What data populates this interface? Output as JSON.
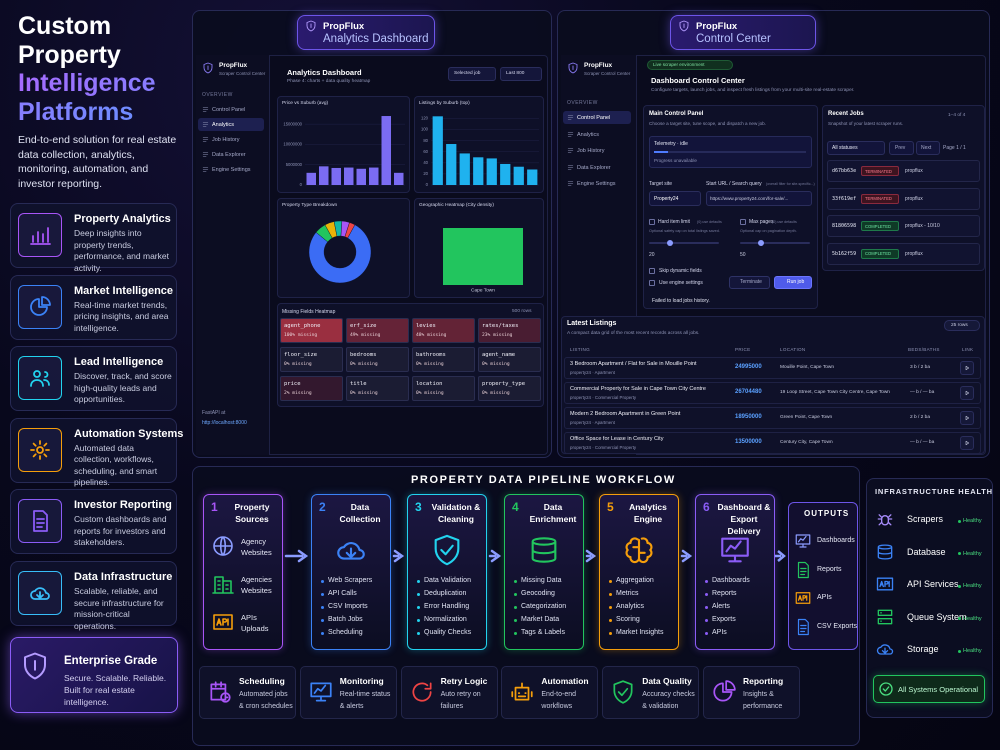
{
  "left": {
    "title": "Custom Property",
    "title_accent": "Intelligence Platforms",
    "description": "End-to-end solution for real estate data collection, analytics, monitoring, automation, and investor reporting.",
    "features": [
      {
        "title": "Property Analytics",
        "text": "Deep insights into property trends, performance, and market activity."
      },
      {
        "title": "Market Intelligence",
        "text": "Real-time market trends, pricing insights, and area intelligence."
      },
      {
        "title": "Lead Intelligence",
        "text": "Discover, track, and score high-quality leads and opportunities."
      },
      {
        "title": "Automation Systems",
        "text": "Automated data collection, workflows, scheduling, and smart pipelines."
      },
      {
        "title": "Investor Reporting",
        "text": "Custom dashboards and reports for investors and stakeholders."
      },
      {
        "title": "Data Infrastructure",
        "text": "Scalable, reliable, and secure infrastructure for mission-critical operations."
      }
    ],
    "enterprise": {
      "title": "Enterprise Grade",
      "text": "Secure. Scalable. Reliable. Built for real estate intelligence."
    }
  },
  "analytics": {
    "header": {
      "brand": "PropFlux",
      "title": "Analytics Dashboard"
    },
    "app": {
      "brand": "PropFlux",
      "tagline": "Scraper Control Center",
      "section": "OVERVIEW",
      "nav": [
        "Control Panel",
        "Analytics",
        "Job History",
        "Data Explorer",
        "Engine Settings"
      ],
      "footer": "FastAPI at",
      "link": "http://localhost:8000"
    },
    "main": {
      "title": "Analytics Dashboard",
      "subtitle": "Phase 4: charts + data quality heatmap",
      "controls": [
        "Selected job",
        "Last 800"
      ]
    },
    "charts": [
      {
        "type": "bar",
        "title": "Price vs Suburb (avg)",
        "color": "#7b6cf2",
        "values": [
          3000000,
          4600000,
          4200000,
          4300000,
          4000000,
          4300000,
          17000000,
          3000000
        ],
        "ylim": [
          0,
          17500000
        ],
        "yticks": [
          0,
          5000000,
          10000000,
          15000000
        ]
      },
      {
        "type": "bar",
        "title": "Listings by Suburb (top)",
        "color": "#1fb2ef",
        "values": [
          124,
          74,
          57,
          50,
          48,
          38,
          33,
          28
        ],
        "ylim": [
          0,
          130
        ],
        "yticks": [
          0,
          20,
          40,
          60,
          80,
          100,
          120
        ]
      },
      {
        "type": "pie",
        "title": "Property Type Breakdown",
        "values": [
          78,
          6,
          5,
          4,
          4,
          3
        ],
        "colors": [
          "#3b6cf5",
          "#22c55e",
          "#eab308",
          "#14b8a6",
          "#a855f7",
          "#ef4444"
        ]
      },
      {
        "type": "heatmap",
        "title": "Geographic Heatmap (City density)",
        "categories": [
          "Cape Town"
        ],
        "values": [
          25
        ],
        "color": "#22c55e"
      }
    ],
    "missing": {
      "title": "Missing Fields Heatmap",
      "rows": "500 rows",
      "cells": [
        {
          "field": "agent_phone",
          "label": "100% missing",
          "pct": 100
        },
        {
          "field": "erf_size",
          "label": "49% missing",
          "pct": 49
        },
        {
          "field": "levies",
          "label": "48% missing",
          "pct": 48
        },
        {
          "field": "rates/taxes",
          "label": "23% missing",
          "pct": 23
        },
        {
          "field": "floor_size",
          "label": "0% missing",
          "pct": 0
        },
        {
          "field": "bedrooms",
          "label": "0% missing",
          "pct": 0
        },
        {
          "field": "bathrooms",
          "label": "0% missing",
          "pct": 0
        },
        {
          "field": "agent_name",
          "label": "0% missing",
          "pct": 0
        },
        {
          "field": "price",
          "label": "2% missing",
          "pct": 2
        },
        {
          "field": "title",
          "label": "0% missing",
          "pct": 0
        },
        {
          "field": "location",
          "label": "0% missing",
          "pct": 0
        },
        {
          "field": "property_type",
          "label": "0% missing",
          "pct": 0
        }
      ]
    }
  },
  "control": {
    "header": {
      "brand": "PropFlux",
      "title": "Control Center"
    },
    "app": {
      "brand": "PropFlux",
      "tagline": "Scraper Control Center",
      "section": "OVERVIEW",
      "nav": [
        "Control Panel",
        "Analytics",
        "Job History",
        "Data Explorer",
        "Engine Settings"
      ]
    },
    "badge": "Live scraper environment",
    "title": "Dashboard Control Center",
    "subtitle": "Configure targets, launch jobs, and inspect fresh listings from your multi-site real-estate scraper.",
    "panel": {
      "title": "Main Control Panel",
      "subtitle": "Choose a target site, tune scope, and dispatch a new job.",
      "telemetry": "Telemetry · idle",
      "progress": "Progress unavailable",
      "site_label": "Target site",
      "site": "Property24",
      "url_label": "Start URL / Search query",
      "url_hint": "(overall filter for site-specific...)",
      "url": "https://www.property24.com/for-sale/...",
      "limit_label": "Hard item limit",
      "limit_hint": "(0) use defaults",
      "pages_label": "Max pages",
      "pages_hint": "(0) use defaults",
      "limit_note": "Optional safety cap on total listings saved.",
      "pages_note": "Optional cap on pagination depth.",
      "limit_value": "20",
      "pages_value": "50",
      "options": [
        "Skip dynamic fields",
        "Use engine settings"
      ],
      "terminate": "Terminate",
      "run": "Run job",
      "error": "Failed to load jobs history."
    },
    "jobs": {
      "title": "Recent Jobs",
      "subtitle": "Snapshot of your latest scraper runs.",
      "count": "1–4 of 4",
      "filter": "All statuses",
      "prev": "Prev",
      "next": "Next",
      "page": "Page 1 / 1",
      "rows": [
        {
          "id": "d67bb63e",
          "status": "TERMINATED",
          "name": "propflux"
        },
        {
          "id": "33f619ef",
          "status": "TERMINATED",
          "name": "propflux"
        },
        {
          "id": "81806598",
          "status": "COMPLETED",
          "name": "propflux - 10/10"
        },
        {
          "id": "5b162f59",
          "status": "COMPLETED",
          "name": "propflux"
        }
      ]
    },
    "listings": {
      "title": "Latest Listings",
      "subtitle": "A compact data grid of the most recent records across all jobs.",
      "count": "25 rows",
      "headers": [
        "LISTING",
        "PRICE",
        "LOCATION",
        "BEDS/BATHS",
        "LINK"
      ],
      "rows": [
        {
          "title": "3 Bedroom Apartment / Flat for Sale in Mouille Point",
          "meta": "property24 · Apartment",
          "price": "24995000",
          "location": "Mouille Point, Cape Town",
          "beds": "3 b / 2 ba"
        },
        {
          "title": "Commercial Property for Sale in Cape Town City Centre",
          "meta": "property24 · Commercial Property",
          "price": "26704480",
          "location": "19 Loop Street, Cape Town City Centre, Cape Town",
          "beds": "— b / — ba"
        },
        {
          "title": "Modern 2 Bedroom Apartment in Green Point",
          "meta": "property24 · Apartment",
          "price": "18950000",
          "location": "Green Point, Cape Town",
          "beds": "2 b / 2 ba"
        },
        {
          "title": "Office Space for Lease in Century City",
          "meta": "property24 · Commercial Property",
          "price": "13500000",
          "location": "Century City, Cape Town",
          "beds": "— b / — ba"
        }
      ]
    }
  },
  "pipeline": {
    "title": "PROPERTY DATA PIPELINE WORKFLOW",
    "stages": [
      {
        "number": "1",
        "title": "Property Sources",
        "color": "#a855f7",
        "items": [
          "Agency Websites",
          "Agencies Websites",
          "APIs Uploads"
        ]
      },
      {
        "number": "2",
        "title": "Data Collection",
        "color": "#3b82f6",
        "items": [
          "Web Scrapers",
          "API Calls",
          "CSV Imports",
          "Batch Jobs",
          "Scheduling"
        ]
      },
      {
        "number": "3",
        "title": "Validation & Cleaning",
        "color": "#22d3ee",
        "items": [
          "Data Validation",
          "Deduplication",
          "Error Handling",
          "Normalization",
          "Quality Checks"
        ]
      },
      {
        "number": "4",
        "title": "Data Enrichment",
        "color": "#22c55e",
        "items": [
          "Missing Data",
          "Geocoding",
          "Categorization",
          "Market Data",
          "Tags & Labels"
        ]
      },
      {
        "number": "5",
        "title": "Analytics Engine",
        "color": "#f59e0b",
        "items": [
          "Aggregation",
          "Metrics",
          "Analytics",
          "Scoring",
          "Market Insights"
        ]
      },
      {
        "number": "6",
        "title": "Dashboard & Export Delivery",
        "color": "#8b5cf6",
        "items": [
          "Dashboards",
          "Reports",
          "Alerts",
          "Exports",
          "APIs"
        ]
      }
    ],
    "outputs": {
      "title": "OUTPUTS",
      "items": [
        "Dashboards",
        "Reports",
        "APIs",
        "CSV Exports"
      ]
    },
    "features": [
      {
        "title": "Scheduling",
        "text": "Automated jobs & cron schedules"
      },
      {
        "title": "Monitoring",
        "text": "Real-time status & alerts"
      },
      {
        "title": "Retry Logic",
        "text": "Auto retry on failures"
      },
      {
        "title": "Automation",
        "text": "End-to-end workflows"
      },
      {
        "title": "Data Quality",
        "text": "Accuracy checks & validation"
      },
      {
        "title": "Reporting",
        "text": "Insights & performance"
      }
    ]
  },
  "infrastructure": {
    "title": "INFRASTRUCTURE HEALTH",
    "items": [
      {
        "name": "Scrapers",
        "status": "Healthy"
      },
      {
        "name": "Database",
        "status": "Healthy"
      },
      {
        "name": "API Services",
        "status": "Healthy"
      },
      {
        "name": "Queue System",
        "status": "Healthy"
      },
      {
        "name": "Storage",
        "status": "Healthy"
      }
    ],
    "footer": "All Systems Operational"
  }
}
